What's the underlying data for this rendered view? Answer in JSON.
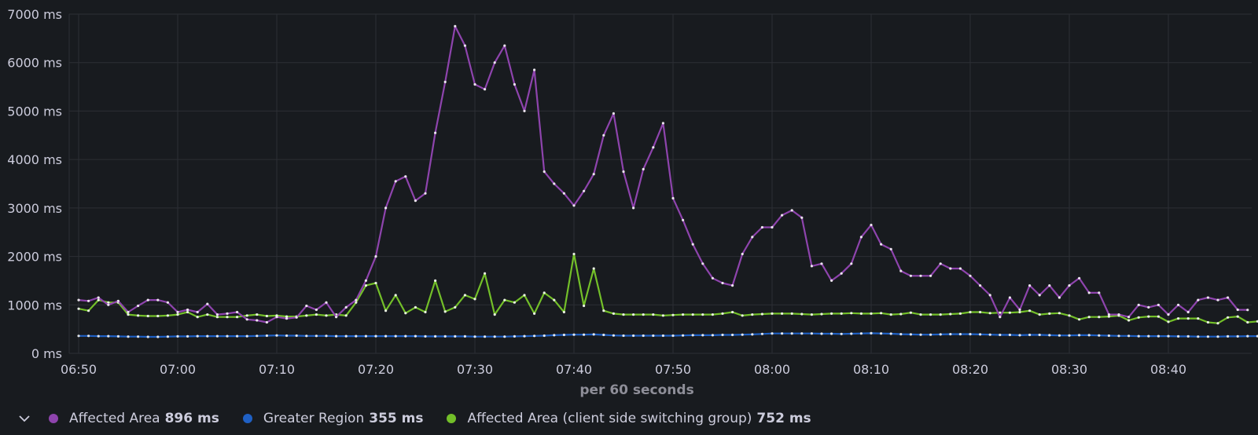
{
  "chart_data": {
    "type": "line",
    "xlabel": "per 60 seconds",
    "ylim": [
      0,
      7000
    ],
    "y_ticks": [
      "0 ms",
      "1000 ms",
      "2000 ms",
      "3000 ms",
      "4000 ms",
      "5000 ms",
      "6000 ms",
      "7000 ms"
    ],
    "y_tick_values": [
      0,
      1000,
      2000,
      3000,
      4000,
      5000,
      6000,
      7000
    ],
    "x_ticks": [
      "06:50",
      "07:00",
      "07:10",
      "07:20",
      "07:30",
      "07:40",
      "07:50",
      "08:00",
      "08:10",
      "08:20",
      "08:30",
      "08:40"
    ],
    "x_range": [
      "06:50",
      "08:49"
    ],
    "x_step": "60 seconds",
    "grid": true,
    "legend_position": "bottom",
    "series": [
      {
        "name": "Affected Area",
        "color": "#8e44ad",
        "legend_value": "896 ms",
        "values": [
          1100,
          1080,
          1150,
          1000,
          1080,
          850,
          980,
          1100,
          1100,
          1050,
          850,
          900,
          850,
          1020,
          800,
          820,
          850,
          700,
          680,
          640,
          750,
          720,
          740,
          980,
          900,
          1050,
          750,
          950,
          1100,
          1500,
          2000,
          3000,
          3550,
          3650,
          3150,
          3300,
          4550,
          5600,
          6750,
          6350,
          5550,
          5450,
          6000,
          6350,
          5550,
          5000,
          5850,
          3750,
          3500,
          3300,
          3050,
          3350,
          3700,
          4500,
          4950,
          3750,
          3000,
          3800,
          4250,
          4750,
          3200,
          2750,
          2250,
          1850,
          1550,
          1450,
          1400,
          2050,
          2400,
          2600,
          2600,
          2850,
          2950,
          2800,
          1800,
          1850,
          1500,
          1650,
          1850,
          2400,
          2650,
          2250,
          2150,
          1700,
          1600,
          1600,
          1600,
          1850,
          1750,
          1750,
          1600,
          1400,
          1200,
          750,
          1150,
          900,
          1400,
          1200,
          1400,
          1150,
          1400,
          1550,
          1250,
          1250,
          800,
          800,
          750,
          1000,
          950,
          1000,
          800,
          1000,
          850,
          1100,
          1150,
          1100,
          1150,
          900,
          896
        ]
      },
      {
        "name": "Greater Region",
        "color": "#1f60c4",
        "legend_value": "355 ms",
        "values": [
          360,
          360,
          355,
          355,
          350,
          345,
          345,
          340,
          340,
          345,
          350,
          350,
          355,
          355,
          355,
          355,
          355,
          355,
          360,
          365,
          370,
          365,
          365,
          360,
          360,
          360,
          355,
          355,
          355,
          355,
          355,
          355,
          355,
          355,
          355,
          350,
          350,
          350,
          350,
          350,
          345,
          345,
          345,
          345,
          350,
          355,
          360,
          365,
          375,
          380,
          385,
          385,
          390,
          380,
          370,
          365,
          365,
          365,
          365,
          365,
          365,
          370,
          375,
          375,
          375,
          380,
          380,
          385,
          390,
          400,
          410,
          410,
          410,
          410,
          410,
          405,
          405,
          400,
          405,
          410,
          415,
          410,
          405,
          395,
          390,
          385,
          385,
          390,
          395,
          395,
          395,
          390,
          385,
          380,
          380,
          375,
          380,
          380,
          375,
          370,
          370,
          375,
          375,
          370,
          365,
          360,
          360,
          355,
          355,
          355,
          355,
          350,
          350,
          345,
          345,
          345,
          350,
          350,
          355,
          355
        ]
      },
      {
        "name": "Affected Area (client side switching group)",
        "color": "#73bf29",
        "legend_value": "752 ms",
        "values": [
          920,
          880,
          1100,
          1050,
          1050,
          800,
          780,
          770,
          770,
          780,
          800,
          850,
          750,
          800,
          750,
          750,
          750,
          780,
          800,
          770,
          780,
          760,
          760,
          780,
          800,
          780,
          800,
          780,
          1050,
          1400,
          1450,
          880,
          1200,
          830,
          950,
          850,
          1500,
          860,
          950,
          1200,
          1120,
          1650,
          800,
          1100,
          1050,
          1200,
          820,
          1250,
          1100,
          850,
          2050,
          980,
          1750,
          880,
          820,
          800,
          800,
          800,
          800,
          780,
          790,
          800,
          800,
          800,
          800,
          820,
          850,
          780,
          800,
          810,
          820,
          820,
          820,
          810,
          800,
          810,
          820,
          820,
          830,
          820,
          820,
          830,
          800,
          810,
          840,
          800,
          800,
          800,
          810,
          820,
          850,
          850,
          830,
          840,
          840,
          850,
          880,
          800,
          820,
          830,
          780,
          700,
          750,
          750,
          760,
          780,
          680,
          740,
          760,
          760,
          650,
          720,
          720,
          720,
          640,
          620,
          740,
          760,
          640,
          660,
          752
        ]
      }
    ]
  },
  "legend": {
    "toggle_icon": "chevron-down-icon"
  }
}
